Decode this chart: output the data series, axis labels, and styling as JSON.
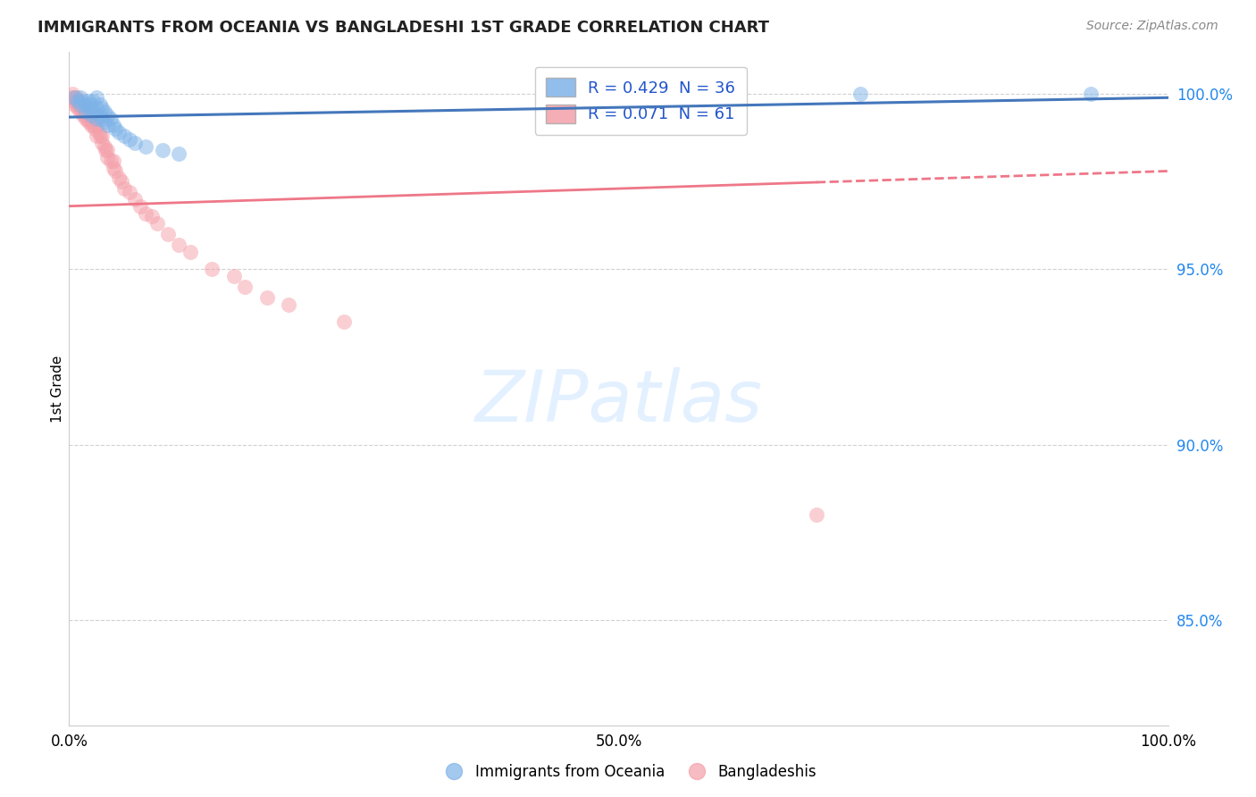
{
  "title": "IMMIGRANTS FROM OCEANIA VS BANGLADESHI 1ST GRADE CORRELATION CHART",
  "source": "Source: ZipAtlas.com",
  "ylabel": "1st Grade",
  "xlim": [
    0.0,
    1.0
  ],
  "ylim": [
    0.82,
    1.012
  ],
  "yticks": [
    0.85,
    0.9,
    0.95,
    1.0
  ],
  "ytick_labels": [
    "85.0%",
    "90.0%",
    "95.0%",
    "100.0%"
  ],
  "blue_color": "#7EB3E8",
  "pink_color": "#F4A0AA",
  "blue_line_color": "#4477BB",
  "pink_line_color": "#EE7788",
  "legend_blue_label": "R = 0.429  N = 36",
  "legend_pink_label": "R = 0.071  N = 61",
  "blue_scatter_x": [
    0.005,
    0.008,
    0.01,
    0.01,
    0.012,
    0.015,
    0.015,
    0.018,
    0.018,
    0.02,
    0.02,
    0.022,
    0.022,
    0.025,
    0.025,
    0.025,
    0.028,
    0.028,
    0.03,
    0.03,
    0.032,
    0.032,
    0.035,
    0.035,
    0.038,
    0.04,
    0.042,
    0.045,
    0.05,
    0.055,
    0.06,
    0.07,
    0.085,
    0.1,
    0.72,
    0.93
  ],
  "blue_scatter_y": [
    0.999,
    0.998,
    0.997,
    0.999,
    0.998,
    0.995,
    0.997,
    0.996,
    0.998,
    0.994,
    0.997,
    0.995,
    0.998,
    0.993,
    0.996,
    0.999,
    0.994,
    0.997,
    0.993,
    0.996,
    0.992,
    0.995,
    0.991,
    0.994,
    0.993,
    0.991,
    0.99,
    0.989,
    0.988,
    0.987,
    0.986,
    0.985,
    0.984,
    0.983,
    1.0,
    1.0
  ],
  "pink_scatter_x": [
    0.003,
    0.003,
    0.004,
    0.005,
    0.005,
    0.006,
    0.007,
    0.007,
    0.008,
    0.008,
    0.009,
    0.01,
    0.01,
    0.011,
    0.012,
    0.013,
    0.014,
    0.015,
    0.015,
    0.016,
    0.017,
    0.018,
    0.019,
    0.02,
    0.02,
    0.021,
    0.022,
    0.023,
    0.025,
    0.025,
    0.027,
    0.028,
    0.03,
    0.03,
    0.032,
    0.033,
    0.035,
    0.035,
    0.038,
    0.04,
    0.04,
    0.042,
    0.045,
    0.048,
    0.05,
    0.055,
    0.06,
    0.065,
    0.07,
    0.075,
    0.08,
    0.09,
    0.1,
    0.11,
    0.13,
    0.15,
    0.16,
    0.18,
    0.2,
    0.25,
    0.68
  ],
  "pink_scatter_y": [
    0.999,
    1.0,
    0.998,
    0.997,
    0.999,
    0.998,
    0.997,
    0.999,
    0.996,
    0.998,
    0.997,
    0.995,
    0.997,
    0.996,
    0.995,
    0.994,
    0.996,
    0.993,
    0.995,
    0.994,
    0.993,
    0.992,
    0.994,
    0.991,
    0.993,
    0.992,
    0.991,
    0.99,
    0.988,
    0.991,
    0.989,
    0.988,
    0.986,
    0.988,
    0.985,
    0.984,
    0.982,
    0.984,
    0.981,
    0.979,
    0.981,
    0.978,
    0.976,
    0.975,
    0.973,
    0.972,
    0.97,
    0.968,
    0.966,
    0.965,
    0.963,
    0.96,
    0.957,
    0.955,
    0.95,
    0.948,
    0.945,
    0.942,
    0.94,
    0.935,
    0.88
  ]
}
